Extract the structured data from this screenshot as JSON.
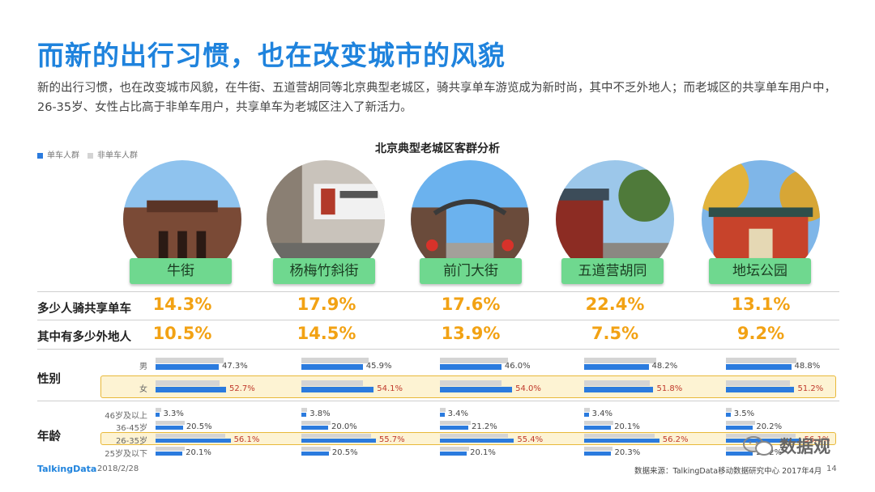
{
  "title": "而新的出行习惯，也在改变城市的风貌",
  "description": "新的出行习惯，也在改变城市风貌，在牛街、五道营胡同等北京典型老城区，骑共享单车游览成为新时尚，其中不乏外地人；而老城区的共享单车用户中，26-35岁、女性占比高于非单车用户，共享单车为老城区注入了新活力。",
  "legend": {
    "blue": "单车人群",
    "gray": "非单车人群"
  },
  "colors": {
    "title": "#1f83dd",
    "blue": "#2b7bde",
    "gray": "#d4d4d4",
    "orange": "#f2a214",
    "label_green": "#6fd88f",
    "highlight": "#fdf3d3"
  },
  "row_labels": {
    "riders": "多少人骑共享单车",
    "nonlocal": "其中有多少外地人",
    "gender": "性别",
    "age": "年龄"
  },
  "gender_labels": [
    "男",
    "女"
  ],
  "age_labels": [
    "46岁及以上",
    "36-45岁",
    "26-35岁",
    "25岁及以下"
  ],
  "chart_data": {
    "type": "bar",
    "title": "北京典型老城区客群分析",
    "categories": [
      "牛街",
      "杨梅竹斜街",
      "前门大街",
      "五道营胡同",
      "地坛公园"
    ],
    "riders_share": [
      "14.3%",
      "17.9%",
      "17.6%",
      "22.4%",
      "13.1%"
    ],
    "nonlocal_share": [
      "10.5%",
      "14.5%",
      "13.9%",
      "7.5%",
      "9.2%"
    ],
    "gender": {
      "groups": [
        "男",
        "女"
      ],
      "series": [
        {
          "name": "单车人群",
          "values": [
            [
              47.3,
              52.7
            ],
            [
              45.9,
              54.1
            ],
            [
              46.0,
              54.0
            ],
            [
              48.2,
              51.8
            ],
            [
              48.8,
              51.2
            ]
          ]
        },
        {
          "name": "非单车人群",
          "values": [
            [
              51,
              48
            ],
            [
              50,
              46
            ],
            [
              51,
              46
            ],
            [
              54,
              49
            ],
            [
              53,
              48
            ]
          ]
        }
      ]
    },
    "age": {
      "groups": [
        "46岁及以上",
        "36-45岁",
        "26-35岁",
        "25岁及以下"
      ],
      "series": [
        {
          "name": "单车人群",
          "values": [
            [
              3.3,
              20.5,
              56.1,
              20.1
            ],
            [
              3.8,
              20.0,
              55.7,
              20.5
            ],
            [
              3.4,
              21.2,
              55.4,
              20.1
            ],
            [
              3.4,
              20.1,
              56.2,
              20.3
            ],
            [
              3.5,
              20.2,
              56.1,
              20.2
            ]
          ]
        },
        {
          "name": "非单车人群",
          "values": [
            [
              4,
              22,
              52,
              22
            ],
            [
              4,
              22,
              52,
              22
            ],
            [
              4,
              23,
              51,
              22
            ],
            [
              4,
              22,
              53,
              21
            ],
            [
              4,
              22,
              52,
              22
            ]
          ]
        }
      ]
    },
    "value_labels": {
      "gender": [
        [
          "47.3%",
          "52.7%"
        ],
        [
          "45.9%",
          "54.1%"
        ],
        [
          "46.0%",
          "54.0%"
        ],
        [
          "48.2%",
          "51.8%"
        ],
        [
          "48.8%",
          "51.2%"
        ]
      ],
      "age": [
        [
          "3.3%",
          "20.5%",
          "56.1%",
          "20.1%"
        ],
        [
          "3.8%",
          "20.0%",
          "55.7%",
          "20.5%"
        ],
        [
          "3.4%",
          "21.2%",
          "55.4%",
          "20.1%"
        ],
        [
          "3.4%",
          "20.1%",
          "56.2%",
          "20.3%"
        ],
        [
          "3.5%",
          "20.2%",
          "56.1%",
          "20.2%"
        ]
      ]
    }
  },
  "photos": [
    "niujie-mosque-photo",
    "yangmeizhu-street-photo",
    "qianmen-street-photo",
    "wudaoying-hutong-photo",
    "ditan-park-photo"
  ],
  "footer": {
    "logo": "TalkingData",
    "date": "2018/2/28",
    "source": "数据来源：TalkingData移动数据研究中心 2017年4月",
    "page": "14",
    "watermark": "数据观"
  }
}
